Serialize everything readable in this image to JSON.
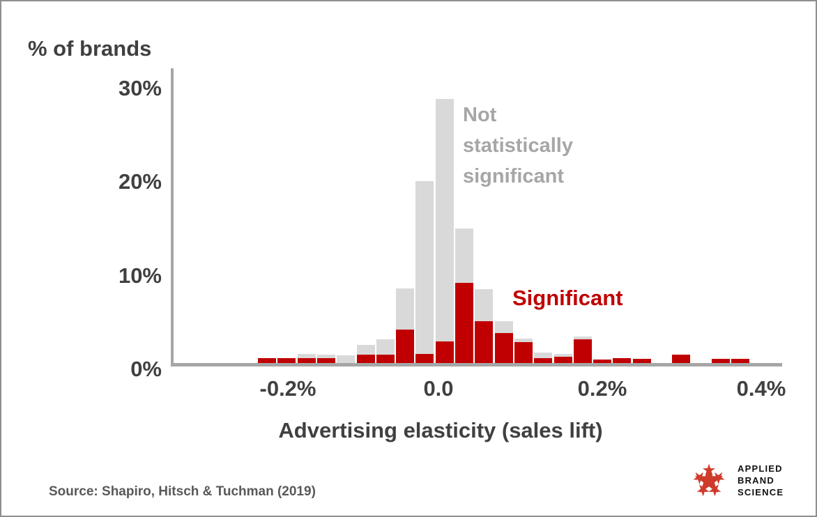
{
  "chart_data": {
    "type": "bar",
    "variant": "stacked-histogram",
    "title": "% of brands",
    "xlabel": "Advertising elasticity (sales lift)",
    "x_tick_labels": [
      "-0.2%",
      "0.0",
      "0.2%",
      "0.4%"
    ],
    "x_tick_values": [
      -0.2,
      0.0,
      0.2,
      0.4
    ],
    "y_tick_labels": [
      "30%",
      "20%",
      "10%",
      "0%"
    ],
    "y_tick_values": [
      30,
      20,
      10,
      0
    ],
    "ylim": [
      0,
      31.5
    ],
    "xlim": [
      -0.25,
      0.425
    ],
    "bin_width": 0.025,
    "grid": false,
    "series": [
      {
        "name": "Not statistically significant",
        "color": "#d9d9d9"
      },
      {
        "name": "Significant",
        "color": "#c00000"
      }
    ],
    "bins": [
      {
        "range": [
          -0.225,
          -0.2
        ],
        "total": 0.5,
        "significant": 0.5
      },
      {
        "range": [
          -0.2,
          -0.175
        ],
        "total": 0.5,
        "significant": 0.5
      },
      {
        "range": [
          -0.175,
          -0.15
        ],
        "total": 1.0,
        "significant": 0.5
      },
      {
        "range": [
          -0.15,
          -0.125
        ],
        "total": 0.9,
        "significant": 0.5
      },
      {
        "range": [
          -0.125,
          -0.1
        ],
        "total": 0.8,
        "significant": 0.0
      },
      {
        "range": [
          -0.1,
          -0.075
        ],
        "total": 1.9,
        "significant": 0.9
      },
      {
        "range": [
          -0.075,
          -0.05
        ],
        "total": 2.5,
        "significant": 0.9
      },
      {
        "range": [
          -0.05,
          -0.025
        ],
        "total": 8.0,
        "significant": 3.6
      },
      {
        "range": [
          -0.025,
          0.0
        ],
        "total": 19.4,
        "significant": 1.0
      },
      {
        "range": [
          0.0,
          0.025
        ],
        "total": 28.2,
        "significant": 2.3
      },
      {
        "range": [
          0.025,
          0.05
        ],
        "total": 14.4,
        "significant": 8.6
      },
      {
        "range": [
          0.05,
          0.075
        ],
        "total": 7.9,
        "significant": 4.5
      },
      {
        "range": [
          0.075,
          0.1
        ],
        "total": 4.5,
        "significant": 3.2
      },
      {
        "range": [
          0.1,
          0.125
        ],
        "total": 2.6,
        "significant": 2.2
      },
      {
        "range": [
          0.125,
          0.15
        ],
        "total": 1.1,
        "significant": 0.5
      },
      {
        "range": [
          0.15,
          0.175
        ],
        "total": 1.0,
        "significant": 0.7
      },
      {
        "range": [
          0.175,
          0.2
        ],
        "total": 2.8,
        "significant": 2.5
      },
      {
        "range": [
          0.2,
          0.225
        ],
        "total": 0.4,
        "significant": 0.4
      },
      {
        "range": [
          0.225,
          0.25
        ],
        "total": 0.5,
        "significant": 0.5
      },
      {
        "range": [
          0.25,
          0.275
        ],
        "total": 0.45,
        "significant": 0.45
      },
      {
        "range": [
          0.275,
          0.3
        ],
        "total": 0.0,
        "significant": 0.0
      },
      {
        "range": [
          0.3,
          0.325
        ],
        "total": 0.9,
        "significant": 0.9
      },
      {
        "range": [
          0.325,
          0.35
        ],
        "total": 0.0,
        "significant": 0.0
      },
      {
        "range": [
          0.35,
          0.375
        ],
        "total": 0.45,
        "significant": 0.45
      },
      {
        "range": [
          0.375,
          0.4
        ],
        "total": 0.45,
        "significant": 0.45
      }
    ],
    "annotations": {
      "not_sig_lines": [
        "Not",
        "statistically",
        "significant"
      ],
      "sig_label": "Significant"
    }
  },
  "colors": {
    "bar_gray": "#d9d9d9",
    "bar_red": "#c00000",
    "axis": "#a6a6a6",
    "text_dark": "#404040",
    "annotation_gray": "#a6a6a6",
    "source_text": "#595959",
    "logo_red": "#ce3b2b"
  },
  "footer": {
    "source": "Source: Shapiro, Hitsch & Tuchman (2019)"
  },
  "logo": {
    "lines": [
      "APPLIED",
      "BRAND",
      "SCIENCE"
    ]
  }
}
